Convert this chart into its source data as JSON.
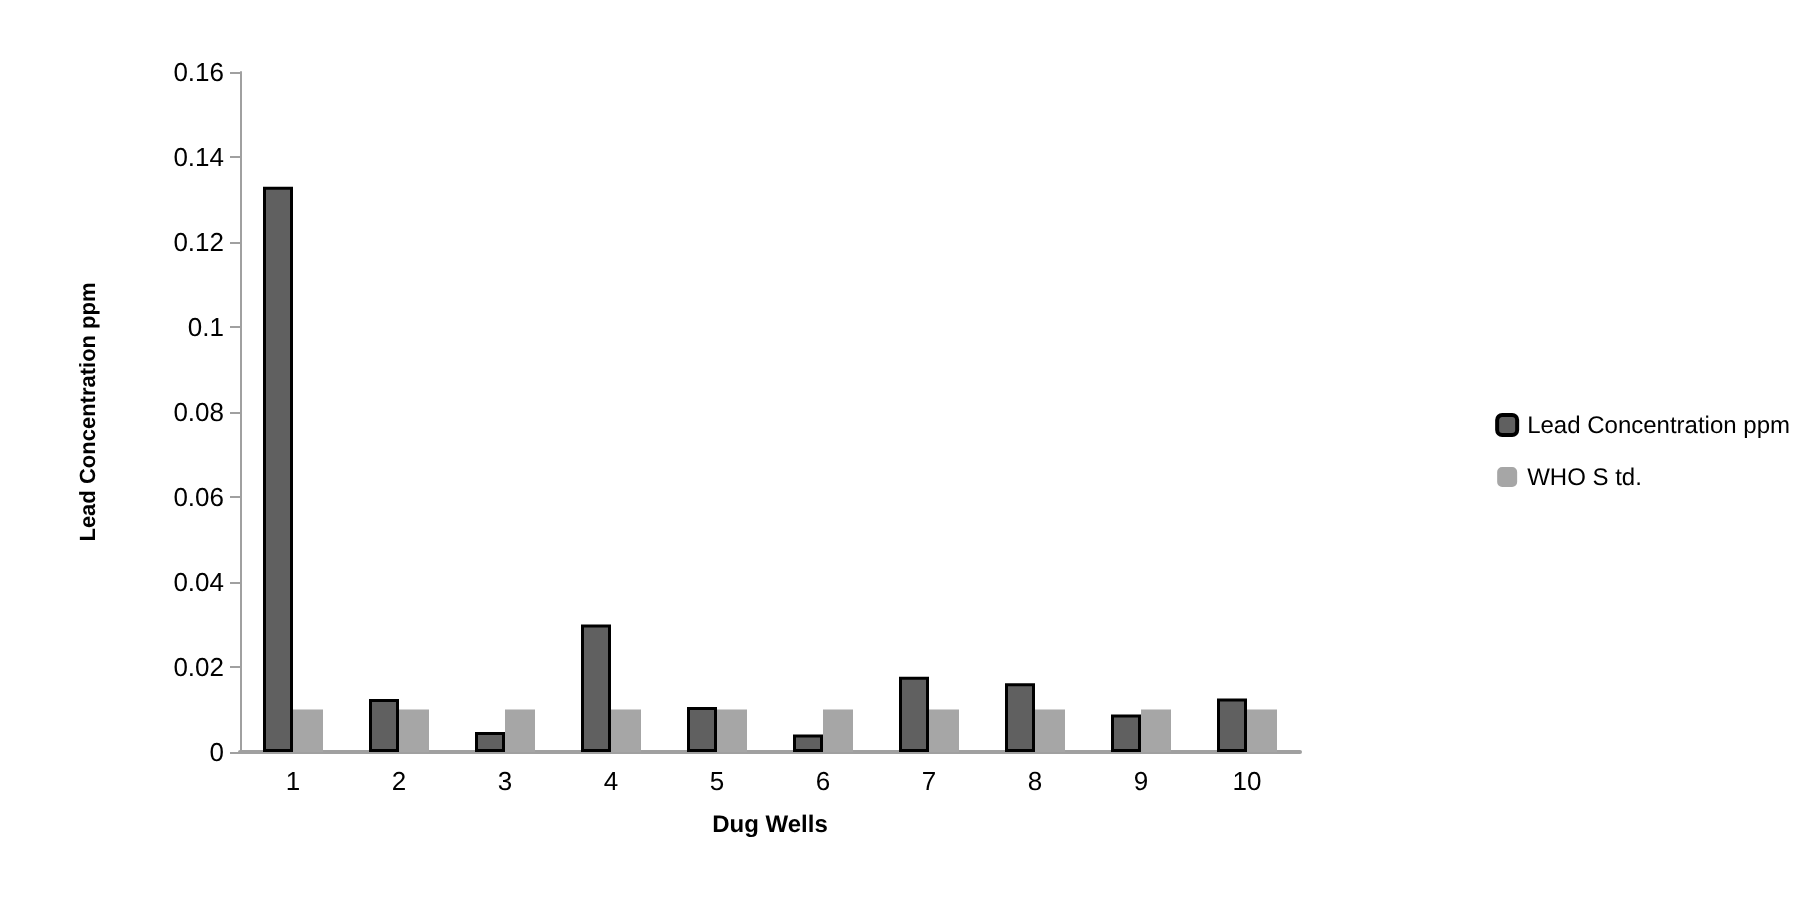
{
  "chart_data": {
    "type": "bar",
    "xlabel": "Dug Wells",
    "ylabel": "Lead Concentration ppm",
    "categories": [
      "1",
      "2",
      "3",
      "4",
      "5",
      "6",
      "7",
      "8",
      "9",
      "10"
    ],
    "series": [
      {
        "name": "Lead Concentration ppm",
        "color": "#606060",
        "values": [
          0.133,
          0.0125,
          0.0047,
          0.03,
          0.0106,
          0.0041,
          0.0177,
          0.0162,
          0.0088,
          0.0126
        ]
      },
      {
        "name": "WHO S td.",
        "color": "#a6a6a6",
        "values": [
          0.01,
          0.01,
          0.01,
          0.01,
          0.01,
          0.01,
          0.01,
          0.01,
          0.01,
          0.01
        ]
      }
    ],
    "ylim": [
      0,
      0.16
    ],
    "yticks": [
      0,
      0.02,
      0.04,
      0.06,
      0.08,
      0.1,
      0.12,
      0.14,
      0.16
    ],
    "grid": false,
    "legend": "right"
  }
}
